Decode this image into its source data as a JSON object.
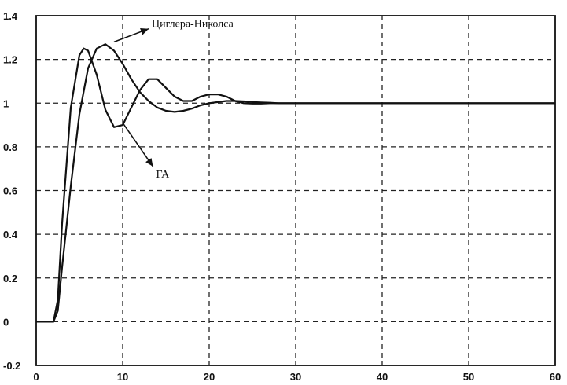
{
  "chart_data": {
    "type": "line",
    "title": "",
    "xlabel": "",
    "ylabel": "",
    "xlim": [
      0,
      60
    ],
    "ylim": [
      -0.2,
      1.4
    ],
    "xticks": [
      "0",
      "10",
      "20",
      "30",
      "40",
      "50",
      "60"
    ],
    "yticks": [
      "-0.2",
      "0",
      "0.2",
      "0.4",
      "0.6",
      "0.8",
      "1",
      "1.2",
      "1.4"
    ],
    "grid": true,
    "grid_style": "dashed",
    "legend": "none",
    "line_color": "#111111",
    "series": [
      {
        "name": "Циглера-Николса",
        "x": [
          0,
          2,
          2.5,
          3,
          4,
          5,
          6,
          7,
          8,
          9,
          10,
          11,
          12,
          13,
          14,
          15,
          16,
          17,
          18,
          19,
          20,
          21,
          22,
          23,
          24,
          25,
          26,
          27,
          28,
          30,
          35,
          40,
          50,
          60
        ],
        "y": [
          0,
          0,
          0.05,
          0.25,
          0.62,
          0.95,
          1.16,
          1.25,
          1.27,
          1.24,
          1.18,
          1.11,
          1.05,
          1.01,
          0.98,
          0.965,
          0.96,
          0.965,
          0.975,
          0.99,
          1.0,
          1.005,
          1.01,
          1.01,
          1.008,
          1.005,
          1.003,
          1.002,
          1.0,
          1.0,
          1.0,
          1.0,
          1.0,
          1.0
        ]
      },
      {
        "name": "ГА",
        "x": [
          0,
          2,
          2.5,
          3,
          4,
          5,
          5.5,
          6,
          7,
          8,
          9,
          10,
          11,
          12,
          13,
          14,
          15,
          16,
          17,
          18,
          19,
          20,
          21,
          22,
          23,
          24,
          25,
          26,
          27,
          28,
          30,
          35,
          40,
          50,
          60
        ],
        "y": [
          0,
          0,
          0.1,
          0.45,
          0.98,
          1.22,
          1.25,
          1.24,
          1.13,
          0.97,
          0.89,
          0.9,
          0.98,
          1.06,
          1.11,
          1.11,
          1.07,
          1.03,
          1.01,
          1.01,
          1.03,
          1.04,
          1.04,
          1.03,
          1.01,
          1.0,
          0.998,
          0.998,
          1.0,
          1.0,
          1.0,
          1.0,
          1.0,
          1.0,
          1.0
        ]
      }
    ],
    "annotations": [
      {
        "text": "Циглера-Николса",
        "series": "Циглера-Николса",
        "x": 9,
        "y": 1.28,
        "label_x": 13,
        "label_y": 1.34
      },
      {
        "text": "ГА",
        "series": "ГА",
        "x": 10,
        "y": 0.91,
        "label_x": 13.5,
        "label_y": 0.71
      }
    ]
  }
}
